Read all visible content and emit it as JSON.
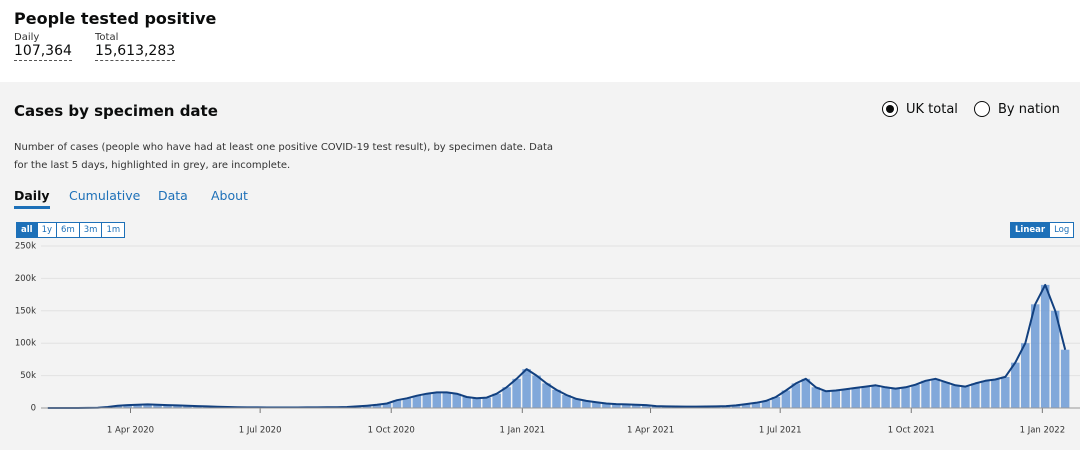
{
  "header": {
    "title": "People tested positive",
    "daily_label": "Daily",
    "daily_value": "107,364",
    "total_label": "Total",
    "total_value": "15,613,283"
  },
  "card": {
    "title": "Cases by specimen date",
    "options": [
      "UK total",
      "By nation"
    ],
    "description": "Number of cases (people who have had at least one positive COVID-19 test result), by specimen date. Data for the last 5 days, highlighted in grey, are incomplete.",
    "tabs": [
      "Daily",
      "Cumulative",
      "Data",
      "About"
    ],
    "ranges": [
      "all",
      "1y",
      "6m",
      "3m",
      "1m"
    ],
    "scales": [
      "Linear",
      "Log"
    ]
  },
  "chart_data": {
    "type": "bar",
    "x": [
      "2020-02-03",
      "2020-02-10",
      "2020-02-17",
      "2020-02-24",
      "2020-03-02",
      "2020-03-09",
      "2020-03-16",
      "2020-03-23",
      "2020-03-30",
      "2020-04-06",
      "2020-04-13",
      "2020-04-20",
      "2020-04-27",
      "2020-05-04",
      "2020-05-11",
      "2020-05-18",
      "2020-05-25",
      "2020-06-01",
      "2020-06-08",
      "2020-06-15",
      "2020-06-22",
      "2020-06-29",
      "2020-07-06",
      "2020-07-13",
      "2020-07-20",
      "2020-07-27",
      "2020-08-03",
      "2020-08-10",
      "2020-08-17",
      "2020-08-24",
      "2020-08-31",
      "2020-09-07",
      "2020-09-14",
      "2020-09-21",
      "2020-09-28",
      "2020-10-05",
      "2020-10-12",
      "2020-10-19",
      "2020-10-26",
      "2020-11-02",
      "2020-11-09",
      "2020-11-16",
      "2020-11-23",
      "2020-11-30",
      "2020-12-07",
      "2020-12-14",
      "2020-12-21",
      "2020-12-28",
      "2021-01-04",
      "2021-01-11",
      "2021-01-18",
      "2021-01-25",
      "2021-02-01",
      "2021-02-08",
      "2021-02-15",
      "2021-02-22",
      "2021-03-01",
      "2021-03-08",
      "2021-03-15",
      "2021-03-22",
      "2021-03-29",
      "2021-04-05",
      "2021-04-12",
      "2021-04-19",
      "2021-04-26",
      "2021-05-03",
      "2021-05-10",
      "2021-05-17",
      "2021-05-24",
      "2021-05-31",
      "2021-06-07",
      "2021-06-14",
      "2021-06-21",
      "2021-06-28",
      "2021-07-05",
      "2021-07-12",
      "2021-07-19",
      "2021-07-26",
      "2021-08-02",
      "2021-08-09",
      "2021-08-16",
      "2021-08-23",
      "2021-08-30",
      "2021-09-06",
      "2021-09-13",
      "2021-09-20",
      "2021-09-27",
      "2021-10-04",
      "2021-10-11",
      "2021-10-18",
      "2021-10-25",
      "2021-11-01",
      "2021-11-08",
      "2021-11-15",
      "2021-11-22",
      "2021-11-29",
      "2021-12-06",
      "2021-12-13",
      "2021-12-20",
      "2021-12-27",
      "2022-01-03",
      "2022-01-10",
      "2022-01-17"
    ],
    "values": [
      0,
      0,
      0,
      0,
      100,
      500,
      1500,
      3500,
      4500,
      5000,
      5500,
      5000,
      4500,
      4000,
      3500,
      3000,
      2500,
      2000,
      1500,
      1200,
      1000,
      900,
      800,
      700,
      700,
      800,
      900,
      1000,
      1100,
      1200,
      1500,
      2500,
      3500,
      5000,
      7000,
      12000,
      15000,
      19000,
      22000,
      24000,
      24000,
      22000,
      17000,
      15000,
      16000,
      22000,
      32000,
      45000,
      60000,
      50000,
      38000,
      28000,
      20000,
      14000,
      11000,
      9000,
      7000,
      6000,
      5500,
      5000,
      4500,
      3000,
      2500,
      2300,
      2200,
      2200,
      2300,
      2500,
      3000,
      4000,
      6000,
      8000,
      11000,
      17000,
      27000,
      38000,
      45000,
      32000,
      26000,
      27000,
      29000,
      31000,
      33000,
      35000,
      32000,
      30000,
      32000,
      36000,
      42000,
      45000,
      40000,
      35000,
      33000,
      38000,
      42000,
      44000,
      48000,
      70000,
      100000,
      160000,
      190000,
      150000,
      90000
    ],
    "bar_color": "#5b8fd1",
    "line_color": "#12407f",
    "xlim": [
      "2020-02-01",
      "2022-01-19"
    ],
    "xticks": [
      {
        "value": "2020-04-01",
        "label": "1 Apr 2020"
      },
      {
        "value": "2020-07-01",
        "label": "1 Jul 2020"
      },
      {
        "value": "2020-10-01",
        "label": "1 Oct 2020"
      },
      {
        "value": "2021-01-01",
        "label": "1 Jan 2021"
      },
      {
        "value": "2021-04-01",
        "label": "1 Apr 2021"
      },
      {
        "value": "2021-07-01",
        "label": "1 Jul 2021"
      },
      {
        "value": "2021-10-01",
        "label": "1 Oct 2021"
      },
      {
        "value": "2022-01-01",
        "label": "1 Jan 2022"
      }
    ],
    "ylim": [
      0,
      250000
    ],
    "yticks": [
      0,
      {
        "value": 50000,
        "label": "50k"
      },
      {
        "value": 100000,
        "label": "100k"
      },
      {
        "value": 150000,
        "label": "150k"
      },
      {
        "value": 200000,
        "label": "200k"
      },
      {
        "value": 250000,
        "label": "250k"
      }
    ],
    "grid": true
  }
}
